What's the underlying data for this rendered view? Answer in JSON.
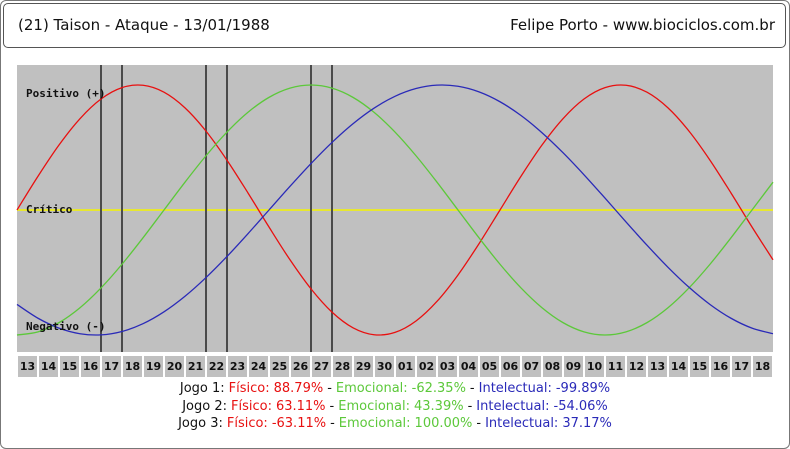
{
  "header": {
    "title": "(21)  Taison - Ataque - 13/01/1988",
    "author": "Felipe Porto  -  www.biociclos.com.br"
  },
  "chart_data": {
    "type": "line",
    "categories": [
      "13",
      "14",
      "15",
      "16",
      "17",
      "18",
      "19",
      "20",
      "21",
      "22",
      "23",
      "24",
      "25",
      "26",
      "27",
      "28",
      "29",
      "30",
      "01",
      "02",
      "03",
      "04",
      "05",
      "06",
      "07",
      "08",
      "09",
      "10",
      "11",
      "12",
      "13",
      "14",
      "15",
      "16",
      "17",
      "18",
      null
    ],
    "ylim": [
      -100,
      100
    ],
    "yticks": [
      {
        "value": 100,
        "label": "Positivo (+)"
      },
      {
        "value": 0,
        "label": "Crítico"
      },
      {
        "value": -100,
        "label": "Negativo (-)"
      }
    ],
    "critical_color": "#f4f400",
    "background": "#c0c0c0",
    "separator": "-",
    "series": [
      {
        "name": "Físico:",
        "color": "#e81010",
        "values": [
          0,
          26.98,
          51.96,
          73.08,
          88.79,
          97.91,
          99.77,
          94.23,
          81.7,
          63.11,
          39.84,
          13.62,
          -13.62,
          -39.84,
          -63.11,
          -81.7,
          -94.23,
          -99.77,
          -97.91,
          -88.79,
          -73.08,
          -51.96,
          -26.98,
          0,
          26.98,
          51.96,
          73.08,
          88.79,
          97.91,
          99.77,
          94.23,
          81.7,
          63.11,
          39.84,
          13.62,
          -13.62,
          -39.84
        ]
      },
      {
        "name": "Emocional:",
        "color": "#5cc83a",
        "values": [
          -100,
          -97.49,
          -90.1,
          -78.18,
          -62.35,
          -43.39,
          -22.25,
          0,
          22.25,
          43.39,
          62.35,
          78.18,
          90.1,
          97.49,
          100,
          97.49,
          90.1,
          78.18,
          62.35,
          43.39,
          22.25,
          0,
          -22.25,
          -43.39,
          -62.35,
          -78.18,
          -90.1,
          -97.49,
          -100,
          -97.49,
          -90.1,
          -78.18,
          -62.35,
          -43.39,
          -22.25,
          0,
          22.25
        ]
      },
      {
        "name": "Intelectual:",
        "color": "#2a2ab8",
        "values": [
          -75.57,
          -86.6,
          -94.5,
          -98.98,
          -99.89,
          -97.18,
          -90.96,
          -81.46,
          -69.01,
          -54.06,
          -37.17,
          -18.93,
          0,
          18.93,
          37.17,
          54.06,
          69.01,
          81.46,
          90.96,
          97.18,
          99.89,
          98.98,
          94.5,
          86.6,
          75.57,
          61.82,
          45.82,
          28.17,
          9.51,
          -9.51,
          -28.17,
          -45.82,
          -61.82,
          -75.57,
          -86.6,
          -94.5,
          -98.98
        ]
      }
    ],
    "games": [
      {
        "name": "Jogo 1:",
        "day": "17",
        "values": [
          88.79,
          -62.35,
          -99.89
        ],
        "value_labels": [
          "88.79%",
          "-62.35%",
          "-99.89%"
        ]
      },
      {
        "name": "Jogo 2:",
        "day": "22",
        "values": [
          63.11,
          43.39,
          -54.06
        ],
        "value_labels": [
          "63.11%",
          "43.39%",
          "-54.06%"
        ]
      },
      {
        "name": "Jogo 3:",
        "day": "27",
        "values": [
          -63.11,
          100.0,
          37.17
        ],
        "value_labels": [
          "-63.11%",
          "100.00%",
          "37.17%"
        ]
      }
    ]
  }
}
